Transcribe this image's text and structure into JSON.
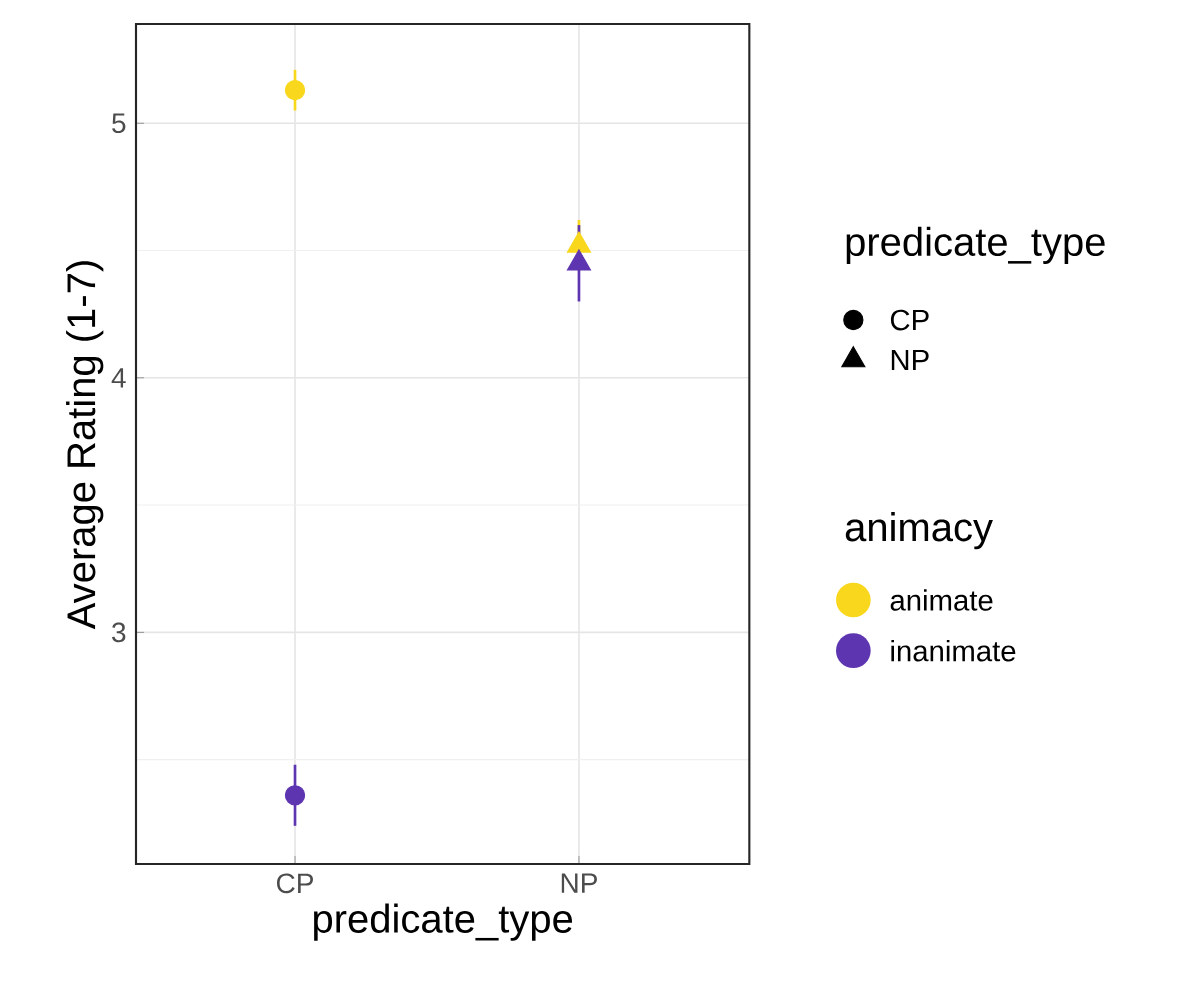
{
  "chart_data": {
    "type": "scatter",
    "xlabel": "predicate_type",
    "ylabel": "Average Rating (1-7)",
    "categories": [
      "CP",
      "NP"
    ],
    "marker": [
      "circle",
      "triangle"
    ],
    "legend_title": [
      "predicate_type",
      "animacy"
    ],
    "series": [
      {
        "name": "animate",
        "color": "#f9d71c",
        "values": [
          5.13,
          4.52
        ],
        "errors": [
          0.08,
          0.1
        ]
      },
      {
        "name": "inanimate",
        "color": "#5e35b1",
        "values": [
          2.36,
          4.45
        ],
        "errors": [
          0.12,
          0.15
        ]
      }
    ],
    "ylim": [
      2.09,
      5.39
    ],
    "yticks": [
      3,
      4,
      5
    ],
    "grid": true,
    "legend": "right"
  }
}
